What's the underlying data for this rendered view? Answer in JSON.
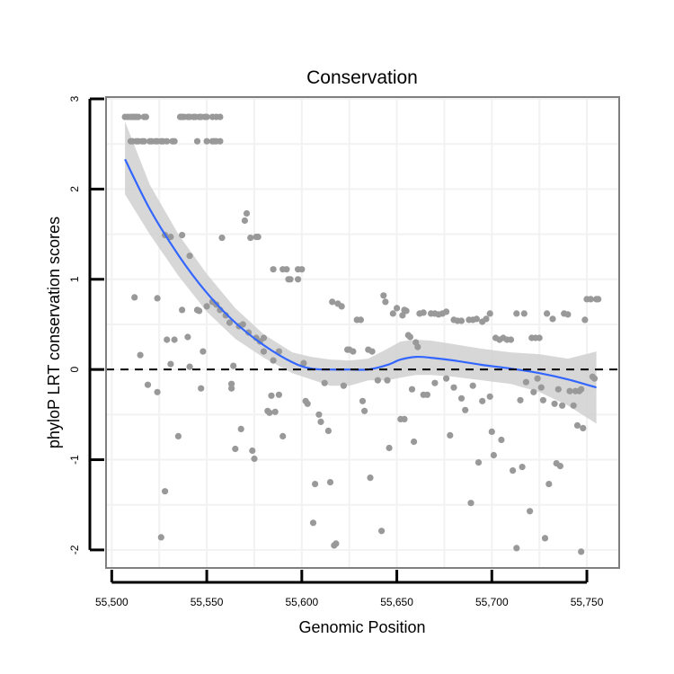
{
  "chart_data": {
    "type": "scatter",
    "title": "Conservation",
    "xlabel": "Genomic Position",
    "ylabel": "phyloP LRT conservation scores",
    "xlim": [
      55497,
      55767
    ],
    "ylim": [
      -2.2,
      3.02
    ],
    "x_ticks": [
      55500,
      55550,
      55600,
      55650,
      55700,
      55750
    ],
    "x_tick_labels": [
      "55,500",
      "55,550",
      "55,600",
      "55,650",
      "55,700",
      "55,750"
    ],
    "y_ticks": [
      3,
      2,
      1,
      0,
      -1,
      -2
    ],
    "y_tick_labels": [
      "3",
      "2",
      "1",
      "0",
      "-1",
      "-2"
    ],
    "reference_line": {
      "y": 0,
      "style": "dashed",
      "color": "#000000"
    },
    "grid": true,
    "colors": {
      "points": "#999999",
      "smooth_line": "#3366FF",
      "confidence_band": "#D0D0D0",
      "panel_border": "#7F7F7F",
      "grid": "#F2F2F2"
    },
    "smooth": {
      "x": [
        55507,
        55520,
        55535,
        55550,
        55565,
        55580,
        55595,
        55605,
        55615,
        55625,
        55635,
        55645,
        55652,
        55660,
        55668,
        55680,
        55695,
        55710,
        55725,
        55740,
        55755
      ],
      "y": [
        2.33,
        1.78,
        1.27,
        0.85,
        0.52,
        0.27,
        0.08,
        0.01,
        0.0,
        0.0,
        0.0,
        0.05,
        0.11,
        0.14,
        0.13,
        0.1,
        0.05,
        0.01,
        -0.04,
        -0.11,
        -0.2
      ],
      "upper": [
        2.75,
        2.05,
        1.5,
        1.06,
        0.68,
        0.39,
        0.19,
        0.14,
        0.11,
        0.1,
        0.12,
        0.23,
        0.31,
        0.33,
        0.32,
        0.28,
        0.23,
        0.19,
        0.17,
        0.12,
        0.2
      ],
      "lower": [
        1.94,
        1.5,
        1.04,
        0.64,
        0.34,
        0.13,
        -0.04,
        -0.11,
        -0.18,
        -0.18,
        -0.12,
        -0.12,
        -0.09,
        -0.06,
        -0.06,
        -0.08,
        -0.12,
        -0.16,
        -0.25,
        -0.4,
        -0.6
      ]
    },
    "points": [
      [
        55507,
        2.8
      ],
      [
        55508.5,
        2.8
      ],
      [
        55510,
        2.8
      ],
      [
        55511,
        2.8
      ],
      [
        55512,
        2.8
      ],
      [
        55513,
        2.8
      ],
      [
        55514,
        2.8
      ],
      [
        55517,
        2.8
      ],
      [
        55518,
        2.8
      ],
      [
        55510,
        2.53
      ],
      [
        55511,
        2.53
      ],
      [
        55513,
        2.53
      ],
      [
        55514,
        2.53
      ],
      [
        55516,
        2.53
      ],
      [
        55517,
        2.53
      ],
      [
        55520,
        2.53
      ],
      [
        55521,
        2.53
      ],
      [
        55523,
        2.53
      ],
      [
        55524,
        2.53
      ],
      [
        55526,
        2.53
      ],
      [
        55527,
        2.53
      ],
      [
        55529,
        2.53
      ],
      [
        55532,
        2.53
      ],
      [
        55533,
        2.53
      ],
      [
        55536,
        2.8
      ],
      [
        55537,
        2.8
      ],
      [
        55538,
        2.8
      ],
      [
        55540,
        2.8
      ],
      [
        55541,
        2.8
      ],
      [
        55543,
        2.8
      ],
      [
        55544,
        2.8
      ],
      [
        55546,
        2.8
      ],
      [
        55547,
        2.8
      ],
      [
        55549,
        2.8
      ],
      [
        55550,
        2.8
      ],
      [
        55553,
        2.8
      ],
      [
        55555,
        2.8
      ],
      [
        55557,
        2.8
      ],
      [
        55545,
        2.53
      ],
      [
        55550,
        2.53
      ],
      [
        55553,
        2.53
      ],
      [
        55554,
        2.53
      ],
      [
        55555,
        2.53
      ],
      [
        55557,
        2.53
      ],
      [
        55531,
        1.47
      ],
      [
        55528,
        1.49
      ],
      [
        55537,
        1.49
      ],
      [
        55541,
        1.26
      ],
      [
        55558,
        1.46
      ],
      [
        55570,
        1.65
      ],
      [
        55571,
        1.73
      ],
      [
        55573,
        1.46
      ],
      [
        55576,
        1.47
      ],
      [
        55577,
        1.47
      ],
      [
        55585,
        1.11
      ],
      [
        55590,
        1.11
      ],
      [
        55592,
        1.11
      ],
      [
        55593,
        1.0
      ],
      [
        55594,
        1.0
      ],
      [
        55598,
        1.0
      ],
      [
        55598,
        1.11
      ],
      [
        55600,
        1.11
      ],
      [
        55512,
        0.8
      ],
      [
        55524,
        0.79
      ],
      [
        55533,
        0.33
      ],
      [
        55535,
        -0.74
      ],
      [
        55537,
        0.66
      ],
      [
        55540,
        0.36
      ],
      [
        55541,
        0.03
      ],
      [
        55545,
        0.66
      ],
      [
        55546,
        0.65
      ],
      [
        55548,
        0.2
      ],
      [
        55550,
        0.7
      ],
      [
        55553,
        0.75
      ],
      [
        55555,
        0.72
      ],
      [
        55557,
        0.66
      ],
      [
        55560,
        0.6
      ],
      [
        55562,
        0.52
      ],
      [
        55564,
        0.04
      ],
      [
        55515,
        0.16
      ],
      [
        55519,
        -0.17
      ],
      [
        55524,
        -0.25
      ],
      [
        55529,
        0.33
      ],
      [
        55531,
        0.06
      ],
      [
        55547,
        -0.21
      ],
      [
        55563,
        -0.16
      ],
      [
        55563,
        -0.21
      ],
      [
        55565,
        -0.88
      ],
      [
        55567,
        0.48
      ],
      [
        55568,
        -0.66
      ],
      [
        55569,
        0.5
      ],
      [
        55572,
        0.41
      ],
      [
        55574,
        -0.9
      ],
      [
        55575,
        -0.99
      ],
      [
        55576,
        0.35
      ],
      [
        55578,
        0.31
      ],
      [
        55580,
        0.35
      ],
      [
        55580,
        0.2
      ],
      [
        55582,
        -0.46
      ],
      [
        55583,
        -0.48
      ],
      [
        55584,
        -0.29
      ],
      [
        55585,
        0.1
      ],
      [
        55586,
        -0.47
      ],
      [
        55588,
        0.2
      ],
      [
        55588,
        -0.28
      ],
      [
        55590,
        -0.74
      ],
      [
        55528,
        -1.35
      ],
      [
        55526,
        -1.86
      ],
      [
        55601,
        0.07
      ],
      [
        55602,
        -0.35
      ],
      [
        55603,
        -0.38
      ],
      [
        55606,
        -1.7
      ],
      [
        55607,
        -1.27
      ],
      [
        55609,
        -0.5
      ],
      [
        55610,
        -0.58
      ],
      [
        55612,
        -0.15
      ],
      [
        55614,
        -0.68
      ],
      [
        55615,
        -1.25
      ],
      [
        55616,
        0.75
      ],
      [
        55617,
        -1.95
      ],
      [
        55618,
        -1.93
      ],
      [
        55619,
        0.73
      ],
      [
        55621,
        0.7
      ],
      [
        55622,
        -0.18
      ],
      [
        55624,
        0.22
      ],
      [
        55625,
        0.22
      ],
      [
        55627,
        0.2
      ],
      [
        55629,
        0.55
      ],
      [
        55631,
        0.55
      ],
      [
        55632,
        -0.35
      ],
      [
        55633,
        -0.46
      ],
      [
        55635,
        0.22
      ],
      [
        55636,
        -1.2
      ],
      [
        55637,
        0.2
      ],
      [
        55640,
        -0.12
      ],
      [
        55642,
        -1.79
      ],
      [
        55643,
        0.82
      ],
      [
        55644,
        0.75
      ],
      [
        55645,
        -0.12
      ],
      [
        55646,
        -0.87
      ],
      [
        55648,
        0.62
      ],
      [
        55650,
        0.68
      ],
      [
        55652,
        -0.55
      ],
      [
        55653,
        0.6
      ],
      [
        55654,
        0.66
      ],
      [
        55655,
        0.65
      ],
      [
        55656,
        0.38
      ],
      [
        55657,
        0.36
      ],
      [
        55659,
        -0.8
      ],
      [
        55660,
        0.3
      ],
      [
        55661,
        0.25
      ],
      [
        55662,
        0.62
      ],
      [
        55664,
        0.63
      ],
      [
        55666,
        -0.28
      ],
      [
        55668,
        0.62
      ],
      [
        55670,
        0.62
      ],
      [
        55672,
        0.61
      ],
      [
        55674,
        0.62
      ],
      [
        55676,
        0.64
      ],
      [
        55678,
        -0.73
      ],
      [
        55680,
        0.55
      ],
      [
        55682,
        0.54
      ],
      [
        55684,
        0.54
      ],
      [
        55686,
        -0.45
      ],
      [
        55688,
        0.55
      ],
      [
        55689,
        -1.48
      ],
      [
        55690,
        0.55
      ],
      [
        55692,
        0.56
      ],
      [
        55693,
        -1.03
      ],
      [
        55695,
        0.53
      ],
      [
        55697,
        0.56
      ],
      [
        55699,
        0.62
      ],
      [
        55700,
        -0.69
      ],
      [
        55701,
        -0.95
      ],
      [
        55702,
        0.35
      ],
      [
        55704,
        0.33
      ],
      [
        55705,
        -0.78
      ],
      [
        55706,
        0.35
      ],
      [
        55708,
        0.33
      ],
      [
        55710,
        0.33
      ],
      [
        55711,
        -1.12
      ],
      [
        55713,
        0.62
      ],
      [
        55713,
        -1.98
      ],
      [
        55715,
        -0.34
      ],
      [
        55716,
        -1.08
      ],
      [
        55717,
        0.62
      ],
      [
        55718,
        -0.14
      ],
      [
        55720,
        -1.57
      ],
      [
        55721,
        0.35
      ],
      [
        55723,
        0.35
      ],
      [
        55725,
        0.35
      ],
      [
        55727,
        -0.34
      ],
      [
        55728,
        -1.87
      ],
      [
        55729,
        0.62
      ],
      [
        55730,
        -1.27
      ],
      [
        55732,
        0.56
      ],
      [
        55733,
        -0.38
      ],
      [
        55734,
        -1.04
      ],
      [
        55735,
        -0.22
      ],
      [
        55736,
        -1.07
      ],
      [
        55737,
        -0.4
      ],
      [
        55738,
        0.62
      ],
      [
        55740,
        0.61
      ],
      [
        55741,
        -0.24
      ],
      [
        55743,
        -0.4
      ],
      [
        55744,
        -0.24
      ],
      [
        55745,
        -0.62
      ],
      [
        55746,
        -0.24
      ],
      [
        55747,
        -0.22
      ],
      [
        55747,
        -2.02
      ],
      [
        55748,
        -0.65
      ],
      [
        55749,
        0.55
      ],
      [
        55750,
        0.78
      ],
      [
        55752,
        0.78
      ],
      [
        55753,
        -0.08
      ],
      [
        55754,
        -0.1
      ],
      [
        55755,
        0.78
      ],
      [
        55756,
        0.78
      ],
      [
        55654,
        -0.55
      ],
      [
        55658,
        -0.22
      ],
      [
        55664,
        -0.28
      ],
      [
        55670,
        -0.15
      ],
      [
        55676,
        -0.1
      ],
      [
        55680,
        -0.2
      ],
      [
        55684,
        -0.32
      ],
      [
        55690,
        -0.18
      ],
      [
        55695,
        -0.35
      ],
      [
        55699,
        -0.3
      ],
      [
        55722,
        -0.25
      ],
      [
        55724,
        -0.1
      ],
      [
        55726,
        -0.2
      ]
    ]
  }
}
